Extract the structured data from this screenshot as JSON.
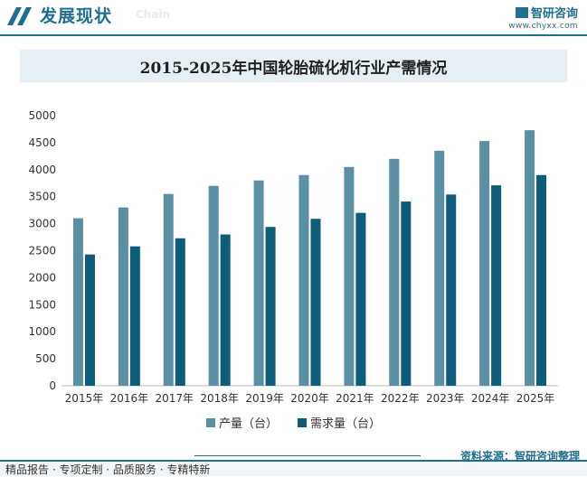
{
  "header": {
    "title": "发展现状",
    "subtitle": "Chain",
    "brand_name": "智研咨询",
    "brand_url": "www.chyxx.com"
  },
  "colors": {
    "accent": "#1f6f8f",
    "production": "#5b8fa3",
    "demand": "#0d5c7a"
  },
  "chart_data": {
    "type": "bar",
    "title": "2015-2025年中国轮胎硫化机行业产需情况",
    "categories": [
      "2015年",
      "2016年",
      "2017年",
      "2018年",
      "2019年",
      "2020年",
      "2021年",
      "2022年",
      "2023年",
      "2024年",
      "2025年"
    ],
    "series": [
      {
        "name": "产量（台）",
        "values": [
          3100,
          3300,
          3550,
          3700,
          3800,
          3900,
          4050,
          4200,
          4350,
          4530,
          4730
        ]
      },
      {
        "name": "需求量（台）",
        "values": [
          2430,
          2580,
          2730,
          2800,
          2940,
          3090,
          3200,
          3410,
          3540,
          3710,
          3900
        ]
      }
    ],
    "ylim": [
      0,
      5000
    ],
    "yticks": [
      0,
      500,
      1000,
      1500,
      2000,
      2500,
      3000,
      3500,
      4000,
      4500,
      5000
    ],
    "xlabel": "",
    "ylabel": "",
    "grid": false,
    "legend_position": "bottom"
  },
  "legend": {
    "production_label": "产量（台）",
    "demand_label": "需求量（台）"
  },
  "source": "资料来源：智研咨询整理",
  "footer": "精品报告 · 专项定制 · 品质服务 · 专精特新"
}
